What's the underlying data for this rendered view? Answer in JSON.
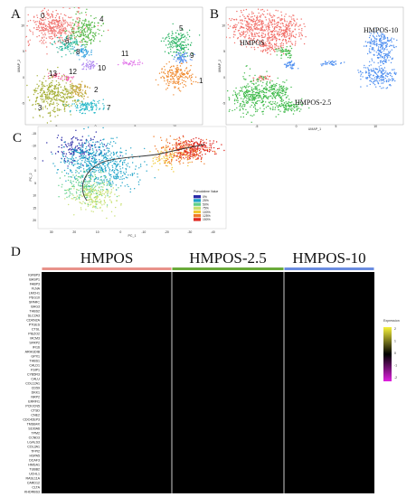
{
  "panels": {
    "A": {
      "letter": "A",
      "x_label": "UMAP_1",
      "y_label": "UMAP_2",
      "x_ticks": [
        "-5",
        "0",
        "5",
        "10"
      ],
      "y_ticks": [
        "10",
        "5",
        "0",
        "-5"
      ],
      "clusters": [
        {
          "label": "0",
          "color": "#f07470"
        },
        {
          "label": "1",
          "color": "#f08a30"
        },
        {
          "label": "2",
          "color": "#c9a43a"
        },
        {
          "label": "3",
          "color": "#a6b038"
        },
        {
          "label": "4",
          "color": "#55b847"
        },
        {
          "label": "5",
          "color": "#2fb566"
        },
        {
          "label": "6",
          "color": "#2ab8a0"
        },
        {
          "label": "7",
          "color": "#26b8c8"
        },
        {
          "label": "8",
          "color": "#3aa3e0"
        },
        {
          "label": "9",
          "color": "#5a8ff0"
        },
        {
          "label": "10",
          "color": "#a97ef0"
        },
        {
          "label": "11",
          "color": "#e070e8"
        },
        {
          "label": "12",
          "color": "#f06bb4"
        },
        {
          "label": "13",
          "color": "#f0608a"
        }
      ]
    },
    "B": {
      "letter": "B",
      "x_label": "UMAP_1",
      "y_label": "UMAP_2",
      "x_ticks": [
        "-5",
        "0",
        "5",
        "10"
      ],
      "y_ticks": [
        "10",
        "5",
        "0",
        "-5"
      ],
      "groups": [
        {
          "label": "HMPOS",
          "color": "#f2706a"
        },
        {
          "label": "HMPOS-2.5",
          "color": "#3fba4a"
        },
        {
          "label": "HMPOS-10",
          "color": "#4f8ff0"
        }
      ]
    },
    "C": {
      "letter": "C",
      "x_label": "PC_1",
      "y_label": "PC_2",
      "x_ticks": [
        "30",
        "20",
        "10",
        "0",
        "-10",
        "-20",
        "-30",
        "-40"
      ],
      "y_ticks": [
        "-15",
        "-10",
        "-5",
        "0",
        "5",
        "10",
        "15",
        "20"
      ],
      "legend_title": "Pseudotime Value",
      "legend_items": [
        {
          "label": "0%",
          "color": "#2a2aa8"
        },
        {
          "label": "25%",
          "color": "#1fa3c8"
        },
        {
          "label": "50%",
          "color": "#5fcf8a"
        },
        {
          "label": "75%",
          "color": "#c8e070"
        },
        {
          "label": "100%",
          "color": "#f0c830"
        },
        {
          "label": "125%",
          "color": "#f07a28"
        },
        {
          "label": "150%",
          "color": "#e02820"
        }
      ]
    },
    "D": {
      "letter": "D",
      "groups": [
        {
          "label": "HMPOS",
          "color": "#e8928a"
        },
        {
          "label": "HMPOS-2.5",
          "color": "#6aaa3a"
        },
        {
          "label": "HMPOS-10",
          "color": "#6a8ce0"
        }
      ],
      "legend_title": "Expression",
      "legend_ticks": [
        "2",
        "1",
        "0",
        "-1",
        "-2"
      ],
      "genes": [
        "IGFBP3",
        "BASP1",
        "FABP3",
        "FLNA",
        "LMCH1",
        "PEG10",
        "SPARC",
        "BAG3",
        "THBS2",
        "SLC2A3",
        "CDKN2A",
        "PTGES",
        "CTSL",
        "PIEZO2",
        "MCM3",
        "SFRP2",
        "IFI16",
        "ARHGDIB",
        "GPX1",
        "THBS1",
        "CALD1",
        "FSIP1",
        "CYB5R3",
        "CALU",
        "COL12A1",
        "CD59",
        "DKK1",
        "NRP2",
        "ERRFI1",
        "PCK/CN5",
        "CTSD",
        "CNE2",
        "CDC42EP3",
        "TMSB4X",
        "S100A6",
        "TPM2",
        "CCND3",
        "LGALS3",
        "COL3A1",
        "TFPI2",
        "HSPA5",
        "DCAF3",
        "HMGA1",
        "TUBB2",
        "UCHL1",
        "RASL11A",
        "CARD12",
        "CLTA",
        "KHDRBS3"
      ]
    }
  }
}
